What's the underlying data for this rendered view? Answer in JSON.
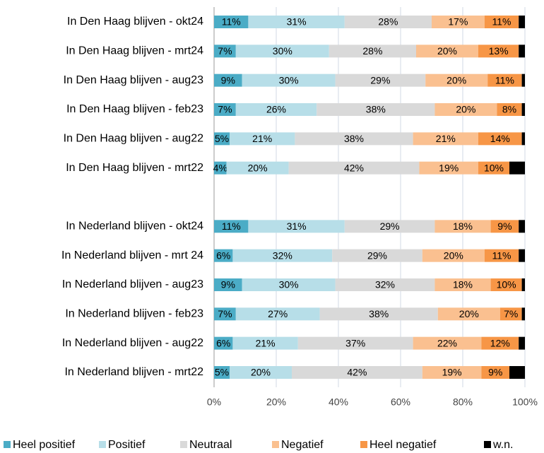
{
  "chart_data": {
    "type": "stacked_bar_horizontal",
    "categories": [
      "In Den Haag blijven - okt24",
      "In Den Haag blijven - mrt24",
      "In Den Haag blijven - aug23",
      "In Den Haag blijven - feb23",
      "In Den Haag blijven - aug22",
      "In Den Haag blijven - mrt22",
      null,
      "In Nederland blijven - okt24",
      "In Nederland blijven - mrt 24",
      "In Nederland blijven - aug23",
      "In Nederland blijven - feb23",
      "In Nederland blijven - aug22",
      "In Nederland blijven - mrt22"
    ],
    "series": [
      {
        "name": "Heel positief",
        "color": "#4bacc6",
        "values": [
          11,
          7,
          9,
          7,
          5,
          4,
          null,
          11,
          6,
          9,
          7,
          6,
          5
        ],
        "value_labels": [
          "11%",
          "7%",
          "9%",
          "7%",
          "5%",
          "4%",
          null,
          "11%",
          "6%",
          "9%",
          "7%",
          "6%",
          "5%"
        ]
      },
      {
        "name": "Positief",
        "color": "#b7dee8",
        "values": [
          31,
          30,
          30,
          26,
          21,
          20,
          null,
          31,
          32,
          30,
          27,
          21,
          20
        ],
        "value_labels": [
          "31%",
          "30%",
          "30%",
          "26%",
          "21%",
          "20%",
          null,
          "31%",
          "32%",
          "30%",
          "27%",
          "21%",
          "20%"
        ]
      },
      {
        "name": "Neutraal",
        "color": "#d9d9d9",
        "values": [
          28,
          28,
          29,
          38,
          38,
          42,
          null,
          29,
          29,
          32,
          38,
          37,
          42
        ],
        "value_labels": [
          "28%",
          "28%",
          "29%",
          "38%",
          "38%",
          "42%",
          null,
          "29%",
          "29%",
          "32%",
          "38%",
          "37%",
          "42%"
        ]
      },
      {
        "name": "Negatief",
        "color": "#fac090",
        "values": [
          17,
          20,
          20,
          20,
          21,
          19,
          null,
          18,
          20,
          18,
          20,
          22,
          19
        ],
        "value_labels": [
          "17%",
          "20%",
          "20%",
          "20%",
          "21%",
          "19%",
          null,
          "18%",
          "20%",
          "18%",
          "20%",
          "22%",
          "19%"
        ]
      },
      {
        "name": "Heel negatief",
        "color": "#f79646",
        "values": [
          11,
          13,
          11,
          8,
          14,
          10,
          null,
          9,
          11,
          10,
          7,
          12,
          9
        ],
        "value_labels": [
          "11%",
          "13%",
          "11%",
          "8%",
          "14%",
          "10%",
          null,
          "9%",
          "11%",
          "10%",
          "7%",
          "12%",
          "9%"
        ]
      },
      {
        "name": "w.n.",
        "color": "#000000",
        "values": [
          2,
          2,
          1,
          1,
          1,
          5,
          null,
          2,
          2,
          1,
          1,
          2,
          5
        ]
      }
    ],
    "xlim": [
      0,
      100
    ],
    "xticks": [
      {
        "value": 0,
        "label": "0%"
      },
      {
        "value": 20,
        "label": "20%"
      },
      {
        "value": 40,
        "label": "40%"
      },
      {
        "value": 60,
        "label": "60%"
      },
      {
        "value": 80,
        "label": "80%"
      },
      {
        "value": 100,
        "label": "100%"
      }
    ],
    "grid": true
  }
}
